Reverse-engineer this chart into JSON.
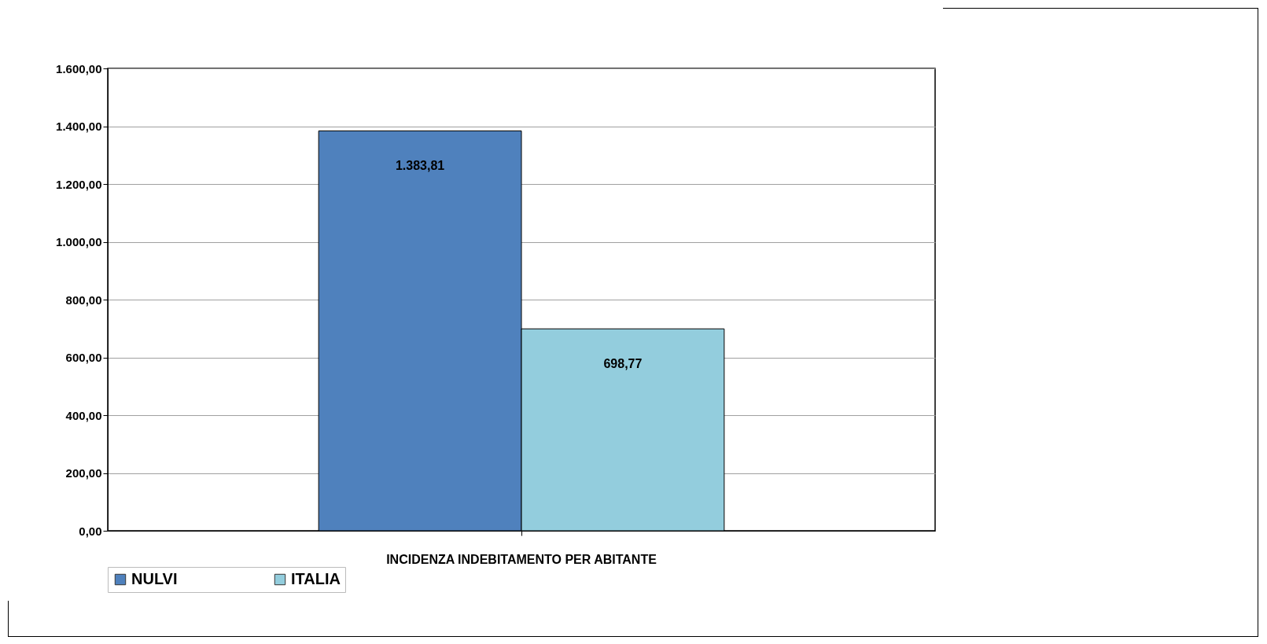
{
  "chart_data": {
    "type": "bar",
    "categories": [
      "INCIDENZA INDEBITAMENTO PER ABITANTE"
    ],
    "series": [
      {
        "name": "NULVI",
        "color": "#4f81bd",
        "values": [
          1383.81
        ],
        "value_labels": [
          "1.383,81"
        ]
      },
      {
        "name": "ITALIA",
        "color": "#93cddd",
        "values": [
          698.77
        ],
        "value_labels": [
          "698,77"
        ]
      }
    ],
    "ylim": [
      0,
      1600
    ],
    "yticks": [
      {
        "value": 0,
        "label": "0,00"
      },
      {
        "value": 200,
        "label": "200,00"
      },
      {
        "value": 400,
        "label": "400,00"
      },
      {
        "value": 600,
        "label": "600,00"
      },
      {
        "value": 800,
        "label": "800,00"
      },
      {
        "value": 1000,
        "label": "1.000,00"
      },
      {
        "value": 1200,
        "label": "1.200,00"
      },
      {
        "value": 1400,
        "label": "1.400,00"
      },
      {
        "value": 1600,
        "label": "1.600,00"
      }
    ],
    "grid": "y",
    "legend": "bottom"
  }
}
